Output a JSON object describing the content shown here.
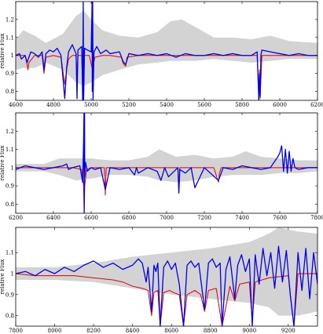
{
  "chart_data": [
    {
      "type": "line",
      "xlim": [
        4600,
        6200
      ],
      "ylim": [
        0.75,
        1.3
      ],
      "xticks": [
        4600,
        4800,
        5000,
        5200,
        5400,
        5600,
        5800,
        6000,
        6200
      ],
      "yticks": [
        0.8,
        0.9,
        1.0,
        1.1,
        1.2
      ],
      "ytick_labels": [
        "0.8",
        "0.9",
        "1",
        "1.1",
        "1.2"
      ],
      "ylabel": "relative Flux",
      "xlabel": "",
      "grid": false,
      "band_color": "#d3d3d3",
      "colors": {
        "observed": "#0000ee",
        "model": "#dd0000"
      },
      "band": [
        {
          "x": 4600,
          "lo": 0.92,
          "hi": 1.09
        },
        {
          "x": 4640,
          "lo": 0.93,
          "hi": 1.14
        },
        {
          "x": 4700,
          "lo": 0.93,
          "hi": 1.11
        },
        {
          "x": 4760,
          "lo": 0.96,
          "hi": 1.07
        },
        {
          "x": 4850,
          "lo": 0.92,
          "hi": 1.12
        },
        {
          "x": 4920,
          "lo": 0.85,
          "hi": 1.22
        },
        {
          "x": 4960,
          "lo": 0.83,
          "hi": 1.25
        },
        {
          "x": 5000,
          "lo": 0.85,
          "hi": 1.2
        },
        {
          "x": 5060,
          "lo": 0.89,
          "hi": 1.14
        },
        {
          "x": 5150,
          "lo": 0.92,
          "hi": 1.11
        },
        {
          "x": 5250,
          "lo": 0.95,
          "hi": 1.1
        },
        {
          "x": 5350,
          "lo": 0.96,
          "hi": 1.13
        },
        {
          "x": 5420,
          "lo": 0.97,
          "hi": 1.19
        },
        {
          "x": 5480,
          "lo": 0.97,
          "hi": 1.2
        },
        {
          "x": 5550,
          "lo": 0.97,
          "hi": 1.16
        },
        {
          "x": 5650,
          "lo": 0.98,
          "hi": 1.1
        },
        {
          "x": 5750,
          "lo": 0.97,
          "hi": 1.1
        },
        {
          "x": 5850,
          "lo": 0.96,
          "hi": 1.09
        },
        {
          "x": 5950,
          "lo": 0.97,
          "hi": 1.11
        },
        {
          "x": 6050,
          "lo": 0.98,
          "hi": 1.08
        },
        {
          "x": 6200,
          "lo": 0.98,
          "hi": 1.07
        }
      ],
      "series": [
        {
          "role": "model",
          "x": [
            4600,
            4650,
            4660,
            4665,
            4670,
            4700,
            4740,
            4750,
            4760,
            4800,
            4840,
            4860,
            4870,
            4880,
            4900,
            4920,
            4925,
            4930,
            4950,
            4957,
            4965,
            4990,
            5005,
            5012,
            5020,
            5060,
            5100,
            5160,
            5168,
            5174,
            5183,
            5190,
            5250,
            5400,
            5600,
            5800,
            5880,
            5889,
            5892,
            5896,
            5905,
            6000,
            6100,
            6200
          ],
          "y": [
            1.0,
            1.0,
            0.95,
            0.92,
            0.96,
            1.0,
            1.0,
            0.9,
            0.99,
            1.0,
            0.99,
            0.84,
            0.92,
            0.98,
            1.0,
            1.0,
            0.86,
            1.0,
            1.0,
            0.8,
            1.0,
            1.0,
            0.93,
            0.95,
            0.99,
            1.0,
            1.0,
            0.99,
            0.96,
            0.95,
            0.94,
            0.99,
            1.0,
            1.0,
            1.0,
            1.0,
            1.0,
            0.75,
            0.92,
            0.76,
            1.0,
            1.0,
            1.0,
            1.0
          ]
        },
        {
          "role": "observed",
          "x": [
            4600,
            4620,
            4630,
            4650,
            4660,
            4680,
            4700,
            4720,
            4740,
            4750,
            4760,
            4780,
            4800,
            4820,
            4840,
            4860,
            4870,
            4880,
            4900,
            4920,
            4925,
            4930,
            4950,
            4955,
            4958,
            4960,
            4965,
            4980,
            5000,
            5005,
            5006,
            5008,
            5010,
            5015,
            5030,
            5050,
            5080,
            5100,
            5150,
            5168,
            5174,
            5183,
            5200,
            5250,
            5300,
            5350,
            5400,
            5450,
            5500,
            5550,
            5600,
            5650,
            5700,
            5750,
            5800,
            5850,
            5880,
            5889,
            5892,
            5896,
            5900,
            5905,
            5950,
            6000,
            6050,
            6100,
            6150,
            6200
          ],
          "y": [
            1.0,
            1.01,
            0.98,
            1.0,
            0.96,
            1.02,
            1.01,
            0.99,
            1.02,
            0.92,
            1.01,
            1.03,
            1.02,
            1.04,
            1.0,
            0.76,
            0.93,
            1.02,
            1.06,
            1.01,
            0.76,
            1.03,
            1.05,
            0.75,
            1.3,
            0.75,
            1.04,
            1.03,
            1.02,
            1.3,
            0.8,
            1.3,
            0.75,
            1.02,
            1.05,
            1.01,
            1.03,
            1.01,
            1.02,
            0.97,
            0.96,
            0.95,
            1.01,
            1.0,
            1.01,
            1.0,
            1.01,
            0.99,
            1.01,
            1.0,
            1.0,
            1.01,
            1.0,
            1.01,
            1.0,
            1.0,
            1.02,
            0.75,
            0.9,
            0.77,
            1.0,
            1.03,
            1.02,
            1.01,
            1.0,
            1.01,
            1.0,
            1.0
          ]
        }
      ]
    },
    {
      "type": "line",
      "xlim": [
        6200,
        7800
      ],
      "ylim": [
        0.75,
        1.3
      ],
      "xticks": [
        6200,
        6400,
        6600,
        6800,
        7000,
        7200,
        7400,
        7600,
        7800
      ],
      "yticks": [
        0.8,
        0.9,
        1.0,
        1.1,
        1.2
      ],
      "ytick_labels": [
        "0.8",
        "0.9",
        "1",
        "1.1",
        "1.2"
      ],
      "ylabel": "relative Flux",
      "xlabel": "",
      "grid": false,
      "band_color": "#d3d3d3",
      "colors": {
        "observed": "#0000ee",
        "model": "#dd0000"
      },
      "band": [
        {
          "x": 6200,
          "lo": 0.98,
          "hi": 1.02
        },
        {
          "x": 6350,
          "lo": 0.98,
          "hi": 1.02
        },
        {
          "x": 6430,
          "lo": 0.96,
          "hi": 1.05
        },
        {
          "x": 6520,
          "lo": 0.93,
          "hi": 1.05
        },
        {
          "x": 6600,
          "lo": 0.94,
          "hi": 1.05
        },
        {
          "x": 6700,
          "lo": 0.96,
          "hi": 1.04
        },
        {
          "x": 6800,
          "lo": 0.96,
          "hi": 1.04
        },
        {
          "x": 6900,
          "lo": 0.95,
          "hi": 1.06
        },
        {
          "x": 6960,
          "lo": 0.93,
          "hi": 1.1
        },
        {
          "x": 7050,
          "lo": 0.92,
          "hi": 1.06
        },
        {
          "x": 7150,
          "lo": 0.93,
          "hi": 1.07
        },
        {
          "x": 7250,
          "lo": 0.95,
          "hi": 1.05
        },
        {
          "x": 7350,
          "lo": 0.96,
          "hi": 1.06
        },
        {
          "x": 7420,
          "lo": 0.96,
          "hi": 1.09
        },
        {
          "x": 7500,
          "lo": 0.96,
          "hi": 1.06
        },
        {
          "x": 7600,
          "lo": 0.97,
          "hi": 1.05
        },
        {
          "x": 7700,
          "lo": 0.97,
          "hi": 1.04
        },
        {
          "x": 7800,
          "lo": 0.98,
          "hi": 1.04
        }
      ],
      "series": [
        {
          "role": "model",
          "x": [
            6200,
            6400,
            6500,
            6550,
            6560,
            6563,
            6566,
            6575,
            6600,
            6670,
            6675,
            6680,
            6700,
            6900,
            7060,
            7065,
            7070,
            7100,
            7250,
            7275,
            7280,
            7290,
            7400,
            7600,
            7800
          ],
          "y": [
            1.0,
            1.0,
            1.0,
            0.99,
            0.9,
            0.75,
            0.9,
            0.99,
            1.0,
            1.0,
            0.85,
            1.0,
            1.0,
            1.0,
            1.0,
            0.87,
            1.0,
            1.0,
            1.0,
            0.92,
            0.97,
            1.0,
            1.0,
            1.0,
            1.0
          ]
        },
        {
          "role": "observed",
          "x": [
            6200,
            6250,
            6300,
            6350,
            6400,
            6450,
            6470,
            6480,
            6500,
            6540,
            6555,
            6560,
            6562,
            6563,
            6565,
            6566,
            6570,
            6580,
            6600,
            6620,
            6650,
            6675,
            6700,
            6750,
            6800,
            6830,
            6840,
            6850,
            6900,
            6950,
            6970,
            6990,
            7010,
            7060,
            7065,
            7070,
            7100,
            7130,
            7150,
            7200,
            7275,
            7300,
            7350,
            7400,
            7450,
            7500,
            7550,
            7590,
            7600,
            7610,
            7620,
            7630,
            7640,
            7650,
            7660,
            7670,
            7680,
            7700,
            7750,
            7800
          ],
          "y": [
            0.99,
            1.01,
            1.0,
            0.99,
            1.0,
            1.01,
            1.02,
            0.99,
            1.0,
            1.01,
            0.92,
            1.15,
            1.3,
            0.75,
            1.3,
            0.95,
            1.03,
            0.98,
            1.0,
            0.99,
            1.0,
            0.88,
            1.0,
            0.99,
            1.0,
            0.96,
            1.0,
            0.97,
            1.0,
            0.98,
            0.93,
            1.0,
            0.95,
            1.0,
            0.86,
            0.99,
            0.97,
            1.0,
            0.89,
            1.0,
            0.93,
            1.0,
            0.99,
            1.01,
            1.0,
            0.99,
            1.0,
            1.06,
            1.08,
            1.12,
            0.98,
            1.1,
            0.97,
            1.09,
            0.98,
            1.05,
            1.0,
            0.99,
            1.0,
            1.0
          ]
        }
      ]
    },
    {
      "type": "line",
      "xlim": [
        7800,
        9350
      ],
      "ylim": [
        0.75,
        1.22
      ],
      "xticks": [
        7800,
        8000,
        8200,
        8400,
        8600,
        8800,
        9000,
        9200
      ],
      "yticks": [
        0.8,
        0.9,
        1.0,
        1.1
      ],
      "ytick_labels": [
        "0.8",
        "0.9",
        "1",
        "1.1"
      ],
      "ylabel": "relative Flux",
      "xlabel": "",
      "grid": false,
      "band_color": "#d3d3d3",
      "colors": {
        "observed": "#0000ee",
        "model": "#dd0000"
      },
      "band": [
        {
          "x": 7800,
          "lo": 0.97,
          "hi": 1.03
        },
        {
          "x": 8000,
          "lo": 0.97,
          "hi": 1.03
        },
        {
          "x": 8200,
          "lo": 0.96,
          "hi": 1.05
        },
        {
          "x": 8400,
          "lo": 0.93,
          "hi": 1.08
        },
        {
          "x": 8600,
          "lo": 0.9,
          "hi": 1.1
        },
        {
          "x": 8800,
          "lo": 0.88,
          "hi": 1.12
        },
        {
          "x": 9000,
          "lo": 0.86,
          "hi": 1.15
        },
        {
          "x": 9100,
          "lo": 0.84,
          "hi": 1.19
        },
        {
          "x": 9150,
          "lo": 0.8,
          "hi": 1.22
        },
        {
          "x": 9250,
          "lo": 0.8,
          "hi": 1.2
        },
        {
          "x": 9350,
          "lo": 0.82,
          "hi": 1.19
        }
      ],
      "series": [
        {
          "role": "model",
          "x": [
            7800,
            7900,
            8000,
            8100,
            8200,
            8300,
            8350,
            8400,
            8450,
            8480,
            8498,
            8510,
            8530,
            8542,
            8560,
            8590,
            8610,
            8640,
            8662,
            8680,
            8720,
            8750,
            8770,
            8790,
            8830,
            8860,
            8900,
            8925,
            8950,
            9000,
            9015,
            9030,
            9100,
            9200,
            9229,
            9250,
            9300,
            9350
          ],
          "y": [
            1.0,
            0.99,
            0.99,
            0.99,
            0.98,
            0.97,
            0.96,
            0.94,
            0.93,
            0.92,
            0.8,
            0.91,
            0.92,
            0.75,
            0.91,
            0.92,
            0.91,
            0.9,
            0.75,
            0.9,
            0.92,
            0.9,
            0.82,
            0.92,
            0.93,
            0.75,
            0.94,
            0.87,
            0.95,
            0.96,
            0.77,
            0.96,
            0.98,
            0.99,
            0.75,
            1.0,
            1.0,
            1.0
          ]
        },
        {
          "role": "observed",
          "x": [
            7800,
            7850,
            7900,
            7950,
            8000,
            8050,
            8100,
            8150,
            8200,
            8250,
            8300,
            8350,
            8400,
            8430,
            8450,
            8470,
            8480,
            8498,
            8510,
            8520,
            8530,
            8542,
            8560,
            8580,
            8600,
            8620,
            8640,
            8662,
            8680,
            8700,
            8720,
            8740,
            8770,
            8790,
            8810,
            8830,
            8850,
            8860,
            8880,
            8900,
            8925,
            8940,
            8960,
            8980,
            9000,
            9015,
            9030,
            9050,
            9070,
            9090,
            9110,
            9130,
            9150,
            9170,
            9190,
            9210,
            9229,
            9250,
            9270,
            9290,
            9310,
            9330,
            9350
          ],
          "y": [
            1.0,
            1.01,
            0.99,
            1.02,
            1.0,
            1.03,
            1.01,
            1.04,
            1.06,
            1.03,
            1.05,
            1.02,
            1.04,
            1.07,
            1.05,
            0.96,
            1.03,
            0.82,
            1.04,
            1.01,
            1.05,
            0.75,
            1.03,
            1.06,
            1.02,
            1.05,
            0.95,
            0.75,
            1.04,
            1.06,
            1.03,
            1.05,
            0.83,
            1.05,
            1.07,
            1.03,
            1.05,
            0.75,
            1.02,
            1.08,
            0.88,
            1.04,
            1.09,
            1.01,
            1.07,
            0.75,
            1.09,
            0.95,
            1.12,
            0.99,
            1.1,
            0.93,
            1.13,
            0.96,
            1.11,
            0.9,
            0.75,
            1.1,
            0.92,
            1.12,
            0.88,
            1.1,
            0.95
          ]
        }
      ]
    }
  ]
}
